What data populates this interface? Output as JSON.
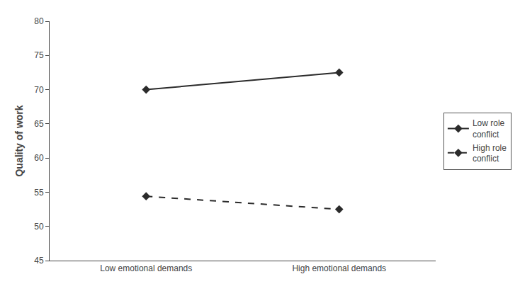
{
  "chart_data": {
    "type": "line",
    "categories": [
      "Low emotional demands",
      "High emotional demands"
    ],
    "ylabel": "Quality of work",
    "series": [
      {
        "name": "Low role\nconflict",
        "color": "#2b2b2b",
        "marker": "diamond",
        "line_style": "solid",
        "values": [
          70.0,
          72.5
        ]
      },
      {
        "name": "High role\nconflict",
        "color": "#2b2b2b",
        "marker": "diamond",
        "line_style": "dashed",
        "values": [
          54.4,
          52.5
        ]
      }
    ],
    "ylim": [
      45,
      80
    ],
    "yticks": [
      45,
      50,
      55,
      60,
      65,
      70,
      75,
      80
    ],
    "grid": false,
    "legend": "right"
  }
}
